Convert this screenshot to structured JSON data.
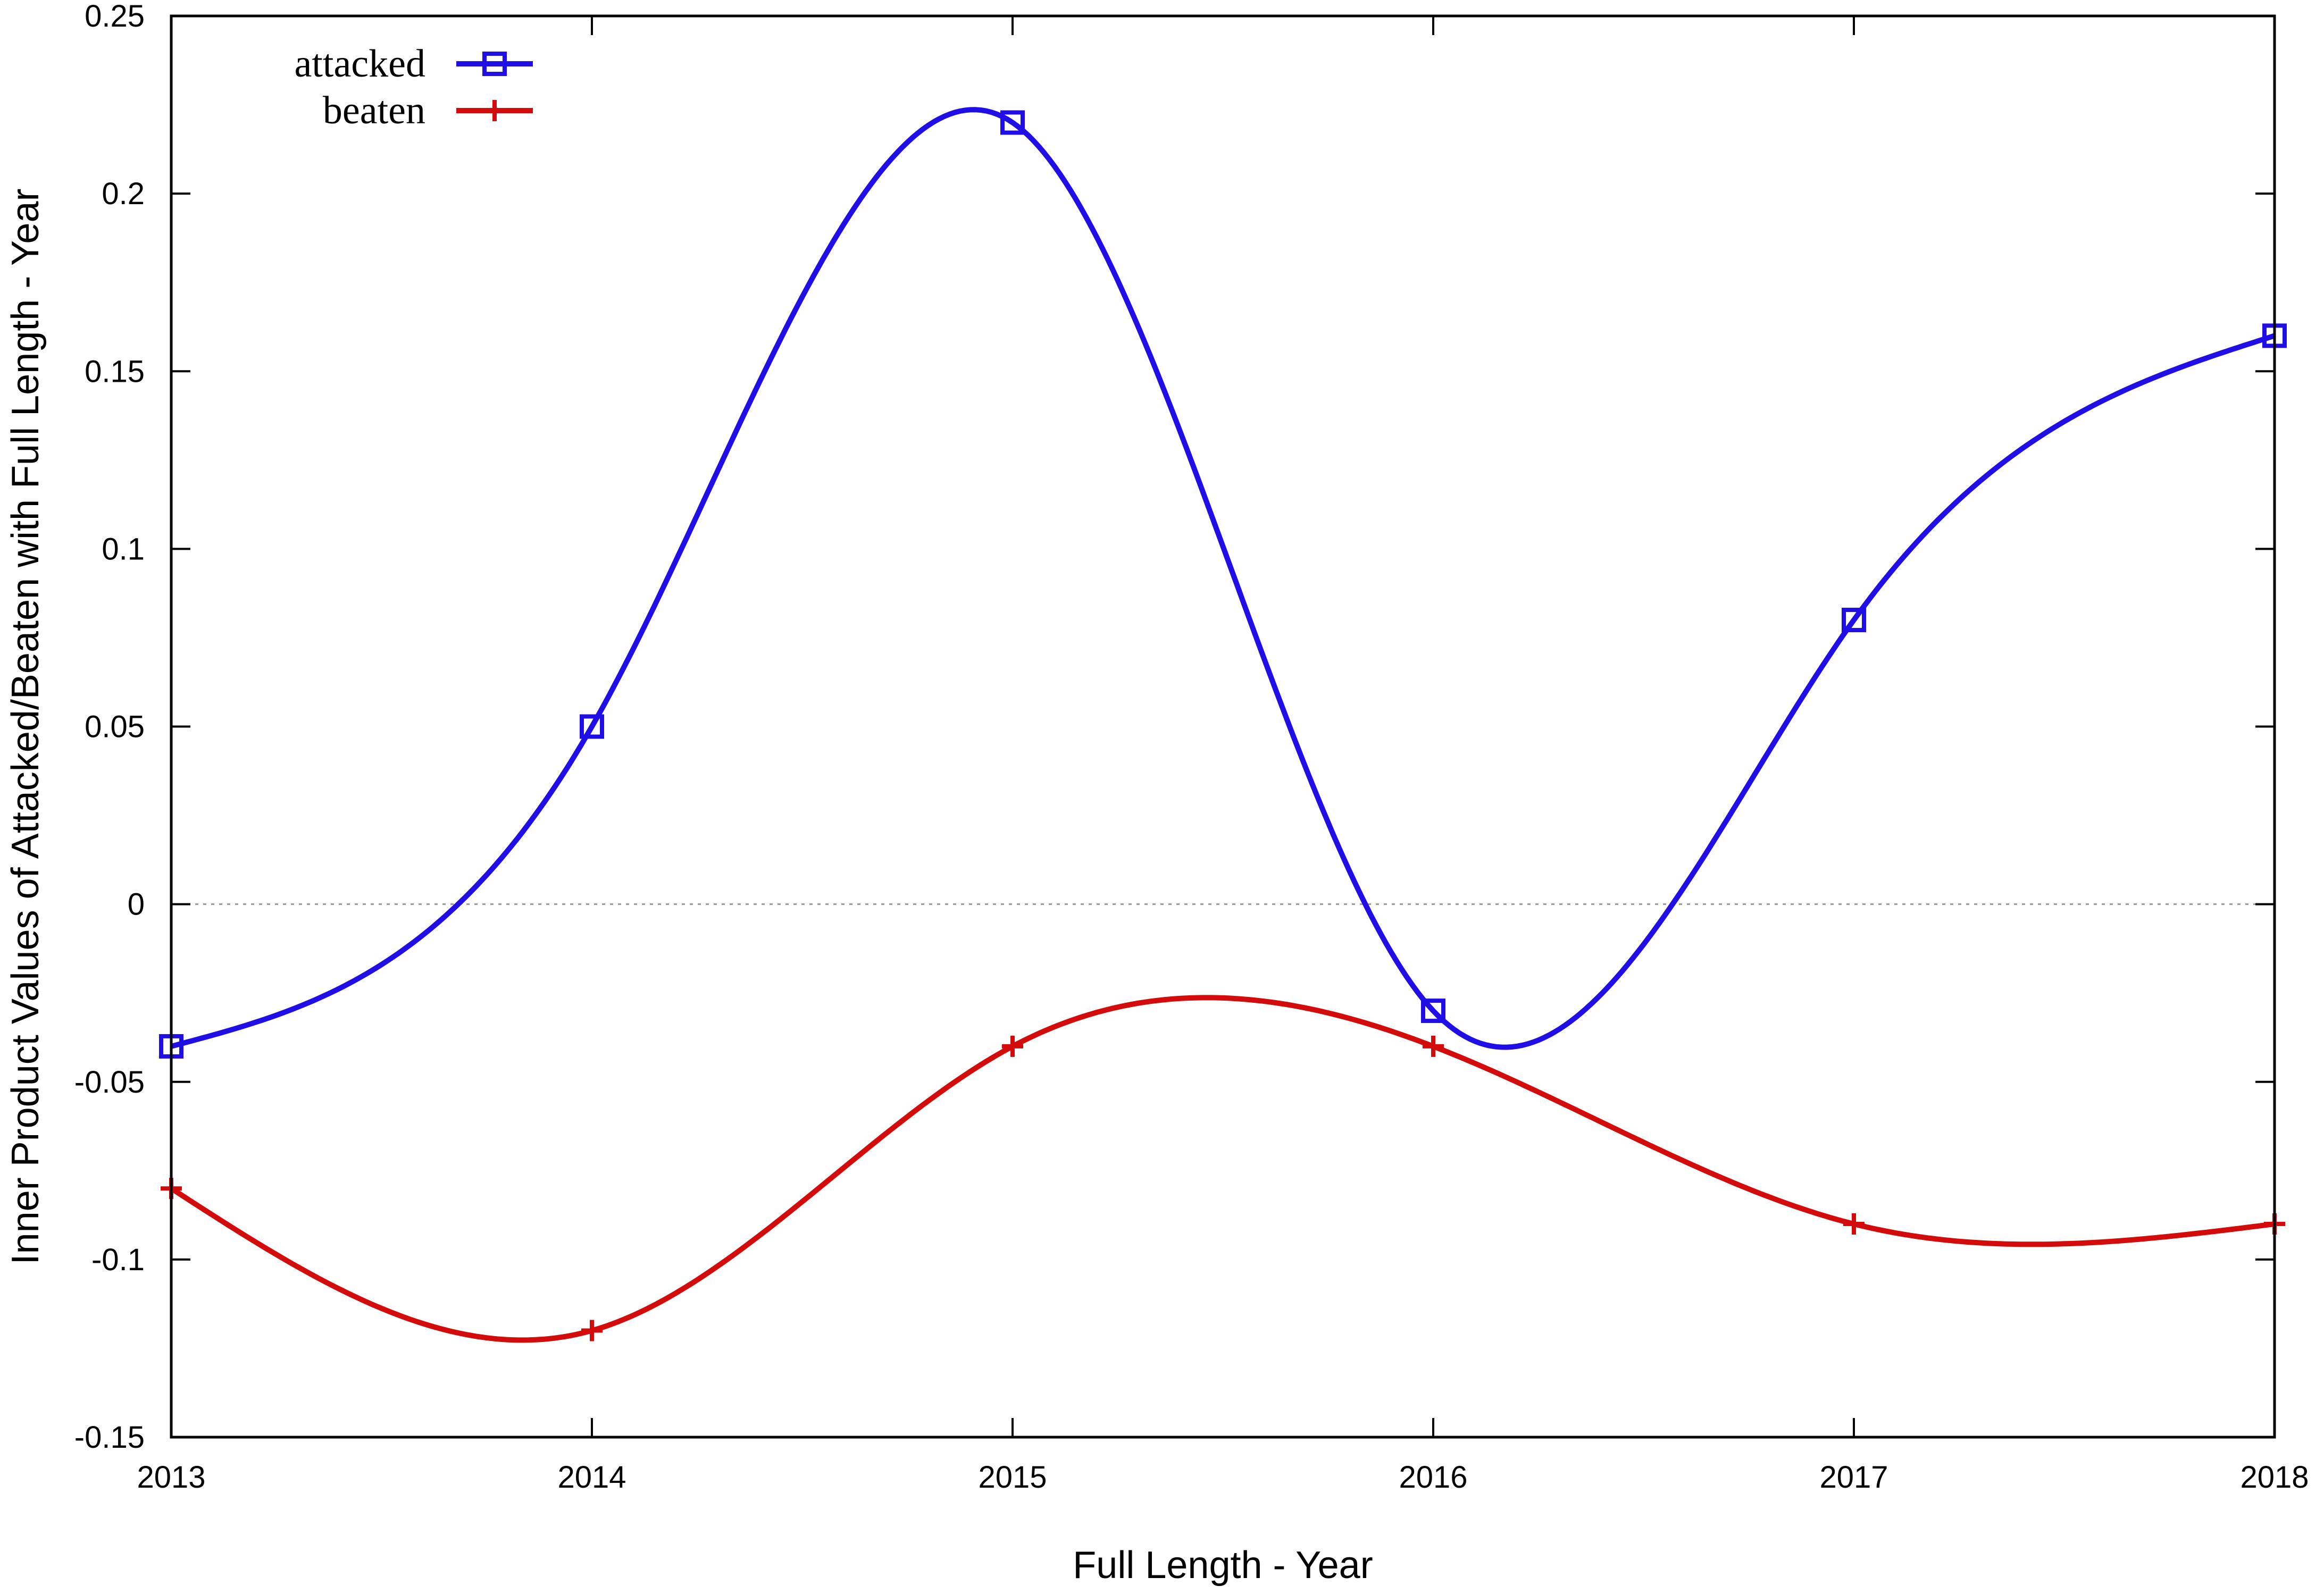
{
  "chart_data": {
    "type": "line",
    "smoothing": "cubic spline",
    "xlabel": "Full Length - Year",
    "ylabel": "Inner Product Values of Attacked/Beaten with Full Length - Year",
    "xlim": [
      2013,
      2018
    ],
    "ylim": [
      -0.15,
      0.25
    ],
    "xticks": [
      "2013",
      "2014",
      "2015",
      "2016",
      "2017",
      "2018"
    ],
    "yticks": [
      "-0.15",
      "-0.1",
      "-0.05",
      "0",
      "0.05",
      "0.1",
      "0.15",
      "0.2",
      "0.25"
    ],
    "zero_line": true,
    "grid": false,
    "legend_position": "top-left",
    "x": [
      2013,
      2014,
      2015,
      2016,
      2017,
      2018
    ],
    "series": [
      {
        "name": "attacked",
        "color": "#1f0fe6",
        "marker": "open-square",
        "values": [
          -0.04,
          0.05,
          0.22,
          -0.03,
          0.08,
          0.16
        ]
      },
      {
        "name": "beaten",
        "color": "#d40b0b",
        "marker": "plus",
        "values": [
          -0.08,
          -0.12,
          -0.04,
          -0.04,
          -0.09,
          -0.09
        ]
      }
    ]
  }
}
